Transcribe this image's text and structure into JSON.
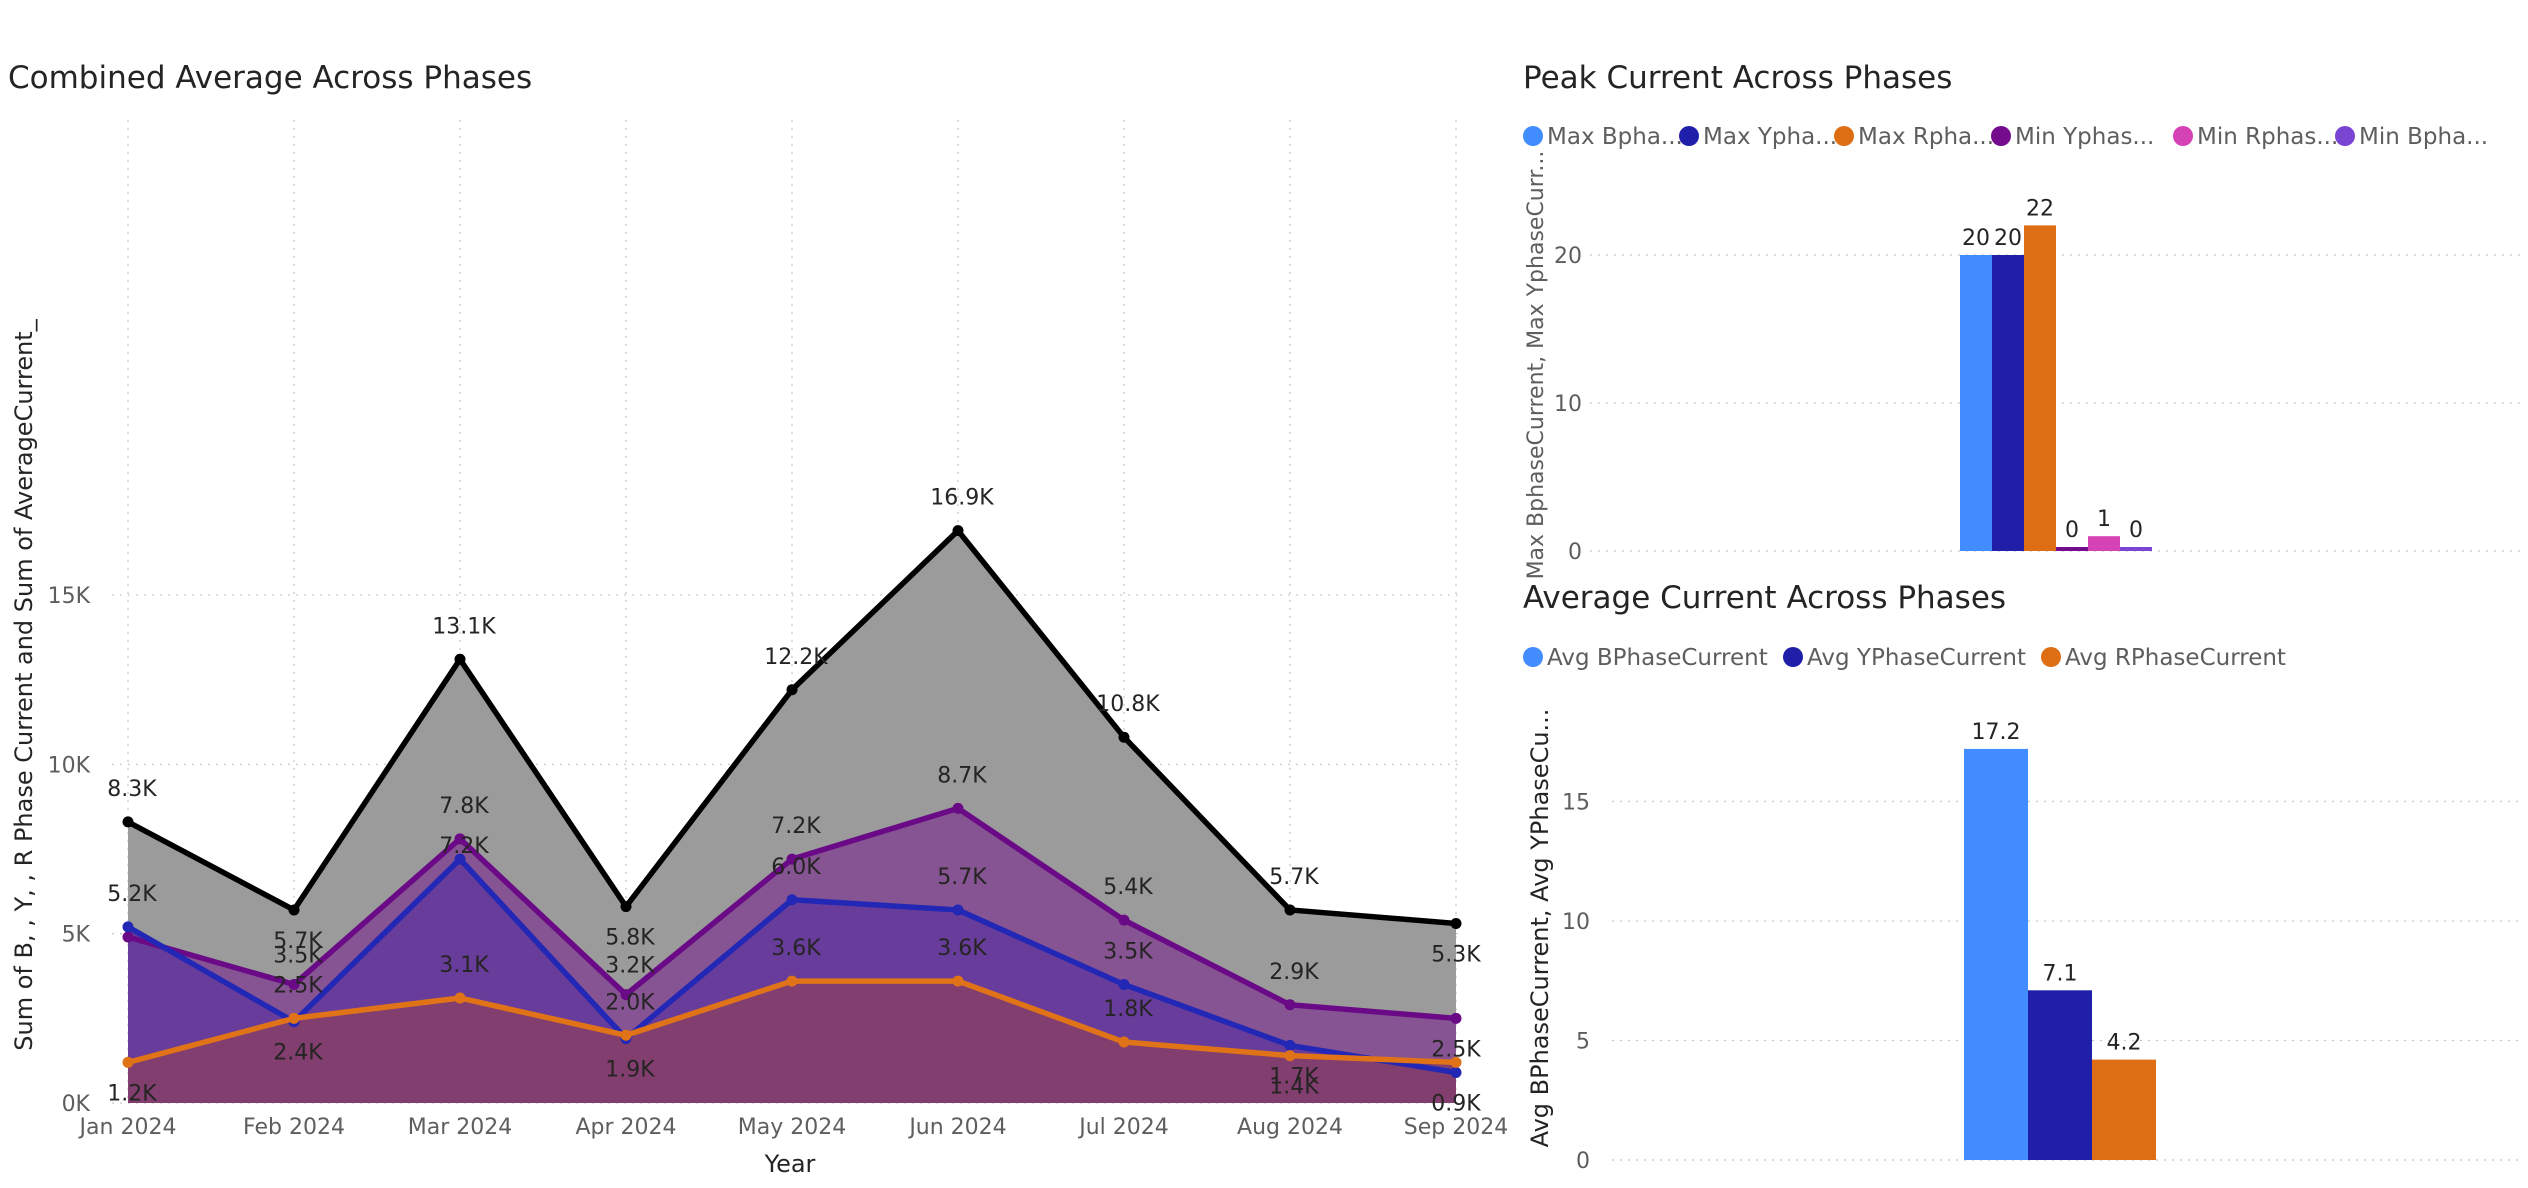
{
  "colors": {
    "total": "#000000",
    "total_fill": "#9b9b9b",
    "r_line": "#6a0a86",
    "r_fill": "#875493",
    "b_line": "#2228b5",
    "b_fill": "#673c9b",
    "y_line": "#e07318",
    "y_fill": "#813e6f",
    "bphase": "#418cff",
    "yphase": "#1f1faa",
    "rphase": "#dd6e13",
    "min_y": "#750b8d",
    "min_r": "#d442b5",
    "min_b": "#7b45d4"
  },
  "chart_data": [
    {
      "type": "area",
      "title": "Combined Average Across Phases",
      "xlabel": "Year",
      "ylabel": "Sum of B, , Y, , R Phase Current and Sum of AverageCurrent_",
      "categories": [
        "Jan 2024",
        "Feb 2024",
        "Mar 2024",
        "Apr 2024",
        "May 2024",
        "Jun 2024",
        "Jul 2024",
        "Aug 2024",
        "Sep 2024"
      ],
      "ylim": [
        0,
        18000
      ],
      "yticks": [
        0,
        5000,
        10000,
        15000
      ],
      "ytick_labels": [
        "0K",
        "5K",
        "10K",
        "15K"
      ],
      "grid": true,
      "series": [
        {
          "values": [
            8300,
            5700,
            13100,
            5800,
            12200,
            16900,
            10800,
            5700,
            5300
          ],
          "labels": [
            "8.3K",
            "5.7K",
            "13.1K",
            "5.8K",
            "12.2K",
            "16.9K",
            "10.8K",
            "5.7K",
            "5.3K"
          ]
        },
        {
          "values": [
            4900,
            3500,
            7800,
            3200,
            7200,
            8700,
            5400,
            2900,
            2500
          ],
          "labels": [
            "",
            "3.5K",
            "7.8K",
            "3.2K",
            "7.2K",
            "8.7K",
            "5.4K",
            "2.9K",
            "2.5K"
          ]
        },
        {
          "values": [
            5200,
            2400,
            7200,
            1900,
            6000,
            5700,
            3500,
            1700,
            900
          ],
          "labels": [
            "5.2K",
            "2.4K",
            "7.2K",
            "1.9K",
            "6.0K",
            "5.7K",
            "3.5K",
            "1.7K",
            "0.9K"
          ]
        },
        {
          "values": [
            1200,
            2500,
            3100,
            2000,
            3600,
            3600,
            1800,
            1400,
            1200
          ],
          "labels": [
            "1.2K",
            "2.5K",
            "3.1K",
            "2.0K",
            "3.6K",
            "3.6K",
            "1.8K",
            "1.4K",
            ""
          ]
        }
      ]
    },
    {
      "type": "bar",
      "title": "Peak Current Across Phases",
      "ylabel": "Max BphaseCurrent, Max YphaseCurr...",
      "ylim": [
        0,
        24
      ],
      "yticks": [
        0,
        10,
        20
      ],
      "grid": true,
      "legend_position": "top-left",
      "series": [
        {
          "name": "Max Bpha...",
          "value": 20,
          "label": "20"
        },
        {
          "name": "Max Ypha...",
          "value": 20,
          "label": "20"
        },
        {
          "name": "Max Rpha...",
          "value": 22,
          "label": "22"
        },
        {
          "name": "Min Yphas...",
          "value": 0,
          "label": "0"
        },
        {
          "name": "Min Rphas...",
          "value": 1,
          "label": "1"
        },
        {
          "name": "Min Bpha...",
          "value": 0,
          "label": "0"
        }
      ]
    },
    {
      "type": "bar",
      "title": "Average Current Across Phases",
      "ylabel": "Avg BPhaseCurrent, Avg YPhaseCu...",
      "ylim": [
        0,
        18.5
      ],
      "yticks": [
        0,
        5,
        10,
        15
      ],
      "grid": true,
      "legend_position": "top-left",
      "series": [
        {
          "name": "Avg BPhaseCurrent",
          "value": 17.2,
          "label": "17.2"
        },
        {
          "name": "Avg YPhaseCurrent",
          "value": 7.1,
          "label": "7.1"
        },
        {
          "name": "Avg RPhaseCurrent",
          "value": 4.2,
          "label": "4.2"
        }
      ]
    }
  ]
}
